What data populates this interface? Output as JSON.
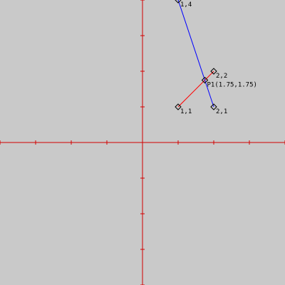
{
  "diagram": {
    "units_per_tick": 1,
    "colors": {
      "background": "#c9c9c9",
      "axes": "#d40000",
      "segment_a": "#ff0000",
      "segment_b": "#0000ff",
      "markers": "#000000"
    },
    "segments": [
      {
        "name": "segment-red",
        "from": [
          1,
          1
        ],
        "to": [
          2,
          2
        ],
        "color": "#ff0000"
      },
      {
        "name": "segment-blue",
        "from": [
          1,
          4
        ],
        "to": [
          2,
          1
        ],
        "color": "#0000ff"
      }
    ],
    "points": [
      {
        "x": 1,
        "y": 1,
        "label": "1,1"
      },
      {
        "x": 2,
        "y": 2,
        "label": "2,2"
      },
      {
        "x": 2,
        "y": 1,
        "label": "2,1"
      },
      {
        "x": 1,
        "y": 4,
        "label": "1,4"
      },
      {
        "x": 1.75,
        "y": 1.75,
        "label": "P1(1.75,1.75)"
      }
    ]
  }
}
